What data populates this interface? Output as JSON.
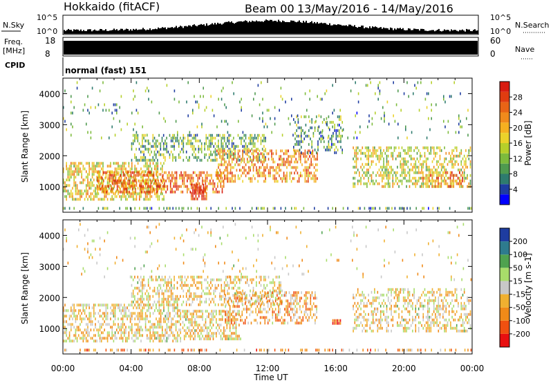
{
  "header": {
    "station": "Hokkaido (fitACF)",
    "beam": "Beam 00",
    "date_range": "13/May/2016 - 14/May/2016"
  },
  "top_panel": {
    "nsky_label": "N.Sky",
    "nsky_ticks": [
      "10^5",
      "10^0"
    ],
    "nsearch_label": "N.Search",
    "freq_label_1": "Freq.",
    "freq_label_2": "[MHz]",
    "freq_ticks": [
      "18",
      "8"
    ],
    "nave_ticks": [
      "60",
      "0"
    ],
    "nave_label": "Nave",
    "cpid_label": "CPID",
    "cpid_value": "normal (fast) 151"
  },
  "chart_data": [
    {
      "type": "heatmap",
      "name": "power",
      "ylabel": "Slant Range [km]",
      "ylim": [
        180,
        4500
      ],
      "yticks": [
        1000,
        2000,
        3000,
        4000
      ],
      "xticks": [
        "00:00",
        "04:00",
        "08:00",
        "12:00",
        "16:00",
        "20:00",
        "00:00"
      ],
      "xlim_hours": [
        0,
        24
      ],
      "colorbar_label": "Power [dB]",
      "colorbar_ticks": [
        "28",
        "24",
        "20",
        "16",
        "12",
        "8",
        "4"
      ],
      "colorbar_colors": [
        "#0000ff",
        "#1e3ca0",
        "#2e7b6e",
        "#4f9a4f",
        "#7dbb3c",
        "#b6cf2a",
        "#ebd22a",
        "#f5b020",
        "#f08a1c",
        "#e86416",
        "#e03c10",
        "#d81c10"
      ],
      "scatter_regions": [
        {
          "t0": 0.0,
          "t1": 6.0,
          "r0": 500,
          "r1": 1800,
          "density": 0.55,
          "level": 0.55
        },
        {
          "t0": 2.0,
          "t1": 9.5,
          "r0": 700,
          "r1": 1500,
          "density": 0.6,
          "level": 0.75
        },
        {
          "t0": 7.5,
          "t1": 8.5,
          "r0": 550,
          "r1": 1100,
          "density": 0.7,
          "level": 0.9
        },
        {
          "t0": 4.0,
          "t1": 12.0,
          "r0": 1800,
          "r1": 2700,
          "density": 0.45,
          "level": 0.35
        },
        {
          "t0": 9.0,
          "t1": 15.0,
          "r0": 1100,
          "r1": 2200,
          "density": 0.5,
          "level": 0.7
        },
        {
          "t0": 13.5,
          "t1": 16.5,
          "r0": 2000,
          "r1": 3300,
          "density": 0.3,
          "level": 0.3
        },
        {
          "t0": 17.0,
          "t1": 24.0,
          "r0": 900,
          "r1": 2300,
          "density": 0.45,
          "level": 0.5
        },
        {
          "t0": 21.0,
          "t1": 23.5,
          "r0": 900,
          "r1": 1500,
          "density": 0.55,
          "level": 0.75
        },
        {
          "t0": 0.0,
          "t1": 24.0,
          "r0": 180,
          "r1": 350,
          "density": 0.35,
          "level": 0.3
        },
        {
          "t0": 0.0,
          "t1": 24.0,
          "r0": 2500,
          "r1": 4400,
          "density": 0.04,
          "level": 0.3
        }
      ]
    },
    {
      "type": "heatmap",
      "name": "velocity",
      "ylabel": "Slant Range [km]",
      "ylim": [
        180,
        4500
      ],
      "yticks": [
        1000,
        2000,
        3000,
        4000
      ],
      "xticks": [
        "00:00",
        "04:00",
        "08:00",
        "12:00",
        "16:00",
        "20:00",
        "00:00"
      ],
      "xlim_hours": [
        0,
        24
      ],
      "xlabel": "Time UT",
      "colorbar_label": "Velocity [m s-1]",
      "colorbar_ticks": [
        "200",
        "100",
        "50",
        "15",
        "-15",
        "-50",
        "-100",
        "-200"
      ],
      "colorbar_colors": [
        "#e81010",
        "#f05010",
        "#f08a18",
        "#f0b030",
        "#c8c8c8",
        "#a8dc6a",
        "#4fa24f",
        "#2e7b8e",
        "#1e3ca0"
      ],
      "scatter_regions": [
        {
          "t0": 0.0,
          "t1": 7.0,
          "r0": 500,
          "r1": 1800,
          "density": 0.5,
          "level": 0.45
        },
        {
          "t0": 7.0,
          "t1": 10.5,
          "r0": 600,
          "r1": 1600,
          "density": 0.55,
          "level": 0.45
        },
        {
          "t0": 4.0,
          "t1": 13.0,
          "r0": 1700,
          "r1": 2700,
          "density": 0.4,
          "level": 0.45
        },
        {
          "t0": 9.5,
          "t1": 15.0,
          "r0": 1100,
          "r1": 2200,
          "density": 0.45,
          "level": 0.35
        },
        {
          "t0": 15.8,
          "t1": 16.4,
          "r0": 1100,
          "r1": 1300,
          "density": 0.8,
          "level": 0.12
        },
        {
          "t0": 17.0,
          "t1": 24.0,
          "r0": 800,
          "r1": 2300,
          "density": 0.4,
          "level": 0.45
        },
        {
          "t0": 0.0,
          "t1": 24.0,
          "r0": 180,
          "r1": 350,
          "density": 0.3,
          "level": 0.3
        },
        {
          "t0": 0.0,
          "t1": 24.0,
          "r0": 2500,
          "r1": 4400,
          "density": 0.03,
          "level": 0.45
        }
      ]
    }
  ],
  "colors": {
    "frame": "#000000",
    "background": "#ffffff"
  }
}
